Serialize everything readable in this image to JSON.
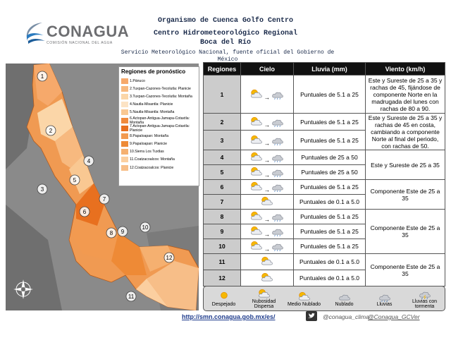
{
  "header": {
    "logo": "CONAGUA",
    "logo_sub": "COMISIÓN NACIONAL DEL AGUA",
    "org": "Organismo de Cuenca Golfo Centro",
    "center": "Centro Hidrometeorológico Regional",
    "place": "Boca del Río",
    "service": "Servicio Meteorológico Nacional, fuente oficial del Gobierno de México"
  },
  "map": {
    "legend_title": "Regiones de pronóstico",
    "regions": [
      {
        "label": "1.Pánuco",
        "color": "#f6a96b"
      },
      {
        "label": "2.Tuxpan-Cazones-Tecolutla: Planicie",
        "color": "#f7b97f"
      },
      {
        "label": "3.Tuxpan-Cazones-Tecolutla: Montaña",
        "color": "#fbd6a8"
      },
      {
        "label": "4.Nautla-Misantla: Planicie",
        "color": "#fce3c4"
      },
      {
        "label": "5.Nautla-Misantla: Montaña",
        "color": "#f9c892"
      },
      {
        "label": "6.Actopan-Antigua-Jamapa-Cotaxtla: Montaña",
        "color": "#f08a3c"
      },
      {
        "label": "7.Actopan-Antigua-Jamapa-Cotaxtla: Planicie",
        "color": "#e8701f"
      },
      {
        "label": "8.Papaloapan: Montaña",
        "color": "#f29a50"
      },
      {
        "label": "9.Papaloapan: Planicie",
        "color": "#ee8a36"
      },
      {
        "label": "10.Sierra Los Tuxtlas",
        "color": "#f5b070"
      },
      {
        "label": "11.Coatzacoalcos: Montaña",
        "color": "#fbcfa0"
      },
      {
        "label": "12.Coatzacoalcos: Planicie",
        "color": "#f7be88"
      }
    ],
    "markers": [
      "1",
      "2",
      "3",
      "4",
      "5",
      "6",
      "7",
      "8",
      "9",
      "10",
      "11",
      "12"
    ]
  },
  "table": {
    "headers": [
      "Regiones",
      "Cielo",
      "Lluvia (mm)",
      "Viento (km/h)"
    ],
    "rows": [
      {
        "region": "1",
        "rain": "Puntuales de 5.1 a 25",
        "wind": "Este y Sureste de 25 a 35 y rachas de 45, fijándose de componente Norte en la madrugada del lunes con rachas de 80 a 90."
      },
      {
        "region": "2",
        "rain": "Puntuales de 5.1 a 25",
        "wind": "Este y Sureste de 25 a 35 y rachas de 45 en costa, cambiando a componente Norte al final del periodo, con rachas de 50."
      },
      {
        "region": "3",
        "rain": "Puntuales de 5.1 a 25",
        "wind": null
      },
      {
        "region": "4",
        "rain": "Puntuales de 25 a 50",
        "wind": "Este y Sureste de 25 a 35"
      },
      {
        "region": "5",
        "rain": "Puntuales de 25 a 50",
        "wind": null
      },
      {
        "region": "6",
        "rain": "Puntuales de 5.1 a 25",
        "wind": "Componente Este de 25 a 35"
      },
      {
        "region": "7",
        "rain": "Puntuales de 0.1 a 5.0",
        "wind": null
      },
      {
        "region": "8",
        "rain": "Puntuales de 5.1 a 25",
        "wind": "Componente Este de 25 a 35"
      },
      {
        "region": "9",
        "rain": "Puntuales de 5.1 a 25",
        "wind": null
      },
      {
        "region": "10",
        "rain": "Puntuales de 5.1 a 25",
        "wind": null
      },
      {
        "region": "11",
        "rain": "Puntuales de 0.1 a 5.0",
        "wind": "Componente Este de 25 a 35"
      },
      {
        "region": "12",
        "rain": "Puntuales de 0.1 a 5.0",
        "wind": null
      }
    ]
  },
  "sky_legend": [
    "Despejado",
    "Nubosidad Dispersa",
    "Medio Nublado",
    "Nublado",
    "Lluvias",
    "Lluvias con tormenta"
  ],
  "footer": {
    "url": "http://smn.conagua.gob.mx/es/",
    "twitter1": "@conagua_clima",
    "twitter2": "@Conagua_GCVer"
  }
}
